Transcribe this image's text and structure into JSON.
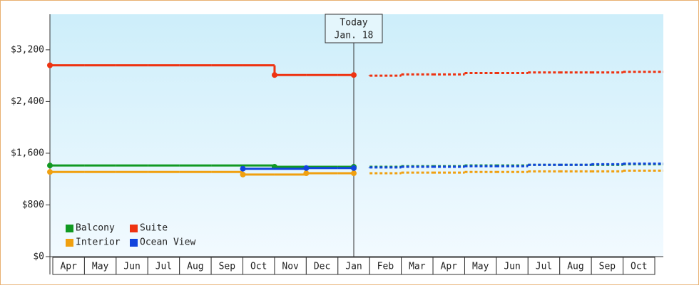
{
  "chart_data": {
    "type": "step",
    "categories": [
      "Apr",
      "May",
      "Jun",
      "Jul",
      "Aug",
      "Sep",
      "Oct",
      "Nov",
      "Dec",
      "Jan",
      "Feb",
      "Mar",
      "Apr",
      "May",
      "Jun",
      "Jul",
      "Aug",
      "Sep",
      "Oct"
    ],
    "ylim": [
      0,
      3750
    ],
    "yticks": [
      {
        "value": 0,
        "label": "$0"
      },
      {
        "value": 800,
        "label": "$800"
      },
      {
        "value": 1600,
        "label": "$1,600"
      },
      {
        "value": 2400,
        "label": "$2,400"
      },
      {
        "value": 3200,
        "label": "$3,200"
      }
    ],
    "annotation": {
      "title": "Today",
      "date": "Jan. 18",
      "category_index": 9
    },
    "legend": "bottom-left",
    "series": [
      {
        "name": "Balcony",
        "color": "#119922",
        "values": [
          1410,
          1410,
          1410,
          1410,
          1410,
          1410,
          1410,
          1390,
          1390,
          1390,
          null,
          null,
          null,
          null,
          null,
          null,
          null,
          null,
          null
        ],
        "forecast": [
          null,
          null,
          null,
          null,
          null,
          null,
          null,
          null,
          null,
          1390,
          1390,
          1400,
          1400,
          1410,
          1410,
          1420,
          1420,
          1420,
          1430
        ]
      },
      {
        "name": "Suite",
        "color": "#ee3311",
        "values": [
          2960,
          2960,
          2960,
          2960,
          2960,
          2960,
          2960,
          2810,
          2810,
          2810,
          null,
          null,
          null,
          null,
          null,
          null,
          null,
          null,
          null
        ],
        "forecast": [
          null,
          null,
          null,
          null,
          null,
          null,
          null,
          null,
          null,
          2810,
          2800,
          2820,
          2820,
          2840,
          2840,
          2850,
          2850,
          2850,
          2860
        ]
      },
      {
        "name": "Interior",
        "color": "#f0a010",
        "values": [
          1310,
          1310,
          1310,
          1310,
          1310,
          1310,
          1270,
          1270,
          1290,
          1290,
          null,
          null,
          null,
          null,
          null,
          null,
          null,
          null,
          null
        ],
        "forecast": [
          null,
          null,
          null,
          null,
          null,
          null,
          null,
          null,
          null,
          1290,
          1290,
          1300,
          1300,
          1310,
          1310,
          1320,
          1320,
          1320,
          1330
        ]
      },
      {
        "name": "Ocean View",
        "color": "#1144dd",
        "values": [
          null,
          null,
          null,
          null,
          null,
          null,
          1360,
          1360,
          1370,
          1370,
          null,
          null,
          null,
          null,
          null,
          null,
          null,
          null,
          null
        ],
        "forecast": [
          null,
          null,
          null,
          null,
          null,
          null,
          null,
          null,
          null,
          1370,
          1380,
          1390,
          1390,
          1400,
          1400,
          1420,
          1420,
          1430,
          1440
        ]
      }
    ]
  }
}
